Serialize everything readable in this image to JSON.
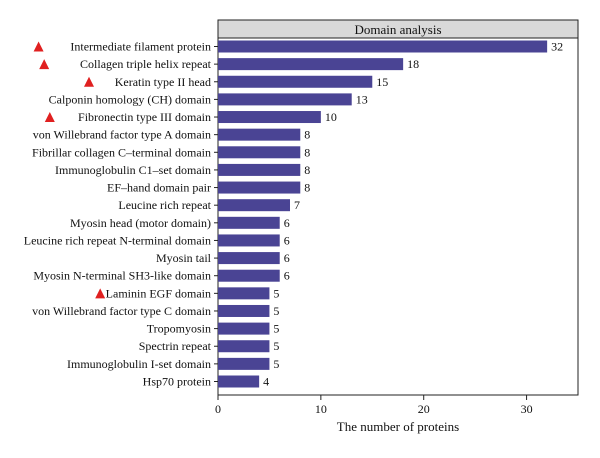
{
  "chart_data": {
    "type": "bar",
    "orientation": "horizontal",
    "title": "Domain analysis",
    "xlabel": "The number of proteins",
    "ylabel": "",
    "xlim": [
      0,
      35
    ],
    "xticks": [
      0,
      10,
      20,
      30
    ],
    "grid": false,
    "bar_color": "#4a4494",
    "marker_color": "#e02020",
    "header_color": "#d9d9d9",
    "categories": [
      "Intermediate filament protein",
      "Collagen triple helix repeat",
      "Keratin type II head",
      "Calponin homology (CH) domain",
      "Fibronectin type III domain",
      "von Willebrand factor type A domain",
      "Fibrillar collagen C–terminal domain",
      "Immunoglobulin C1–set domain",
      "EF–hand domain pair",
      "Leucine rich repeat",
      "Myosin head (motor domain)",
      "Leucine rich repeat N-terminal domain",
      "Myosin tail",
      "Myosin N-terminal SH3-like domain",
      "Laminin EGF domain",
      "von Willebrand factor type C domain",
      "Tropomyosin",
      "Spectrin repeat",
      "Immunoglobulin I-set domain",
      "Hsp70 protein"
    ],
    "values": [
      32,
      18,
      15,
      13,
      10,
      8,
      8,
      8,
      8,
      7,
      6,
      6,
      6,
      6,
      5,
      5,
      5,
      5,
      5,
      4
    ],
    "highlighted": [
      true,
      true,
      true,
      false,
      true,
      false,
      false,
      false,
      false,
      false,
      false,
      false,
      false,
      false,
      true,
      false,
      false,
      false,
      false,
      false
    ]
  }
}
